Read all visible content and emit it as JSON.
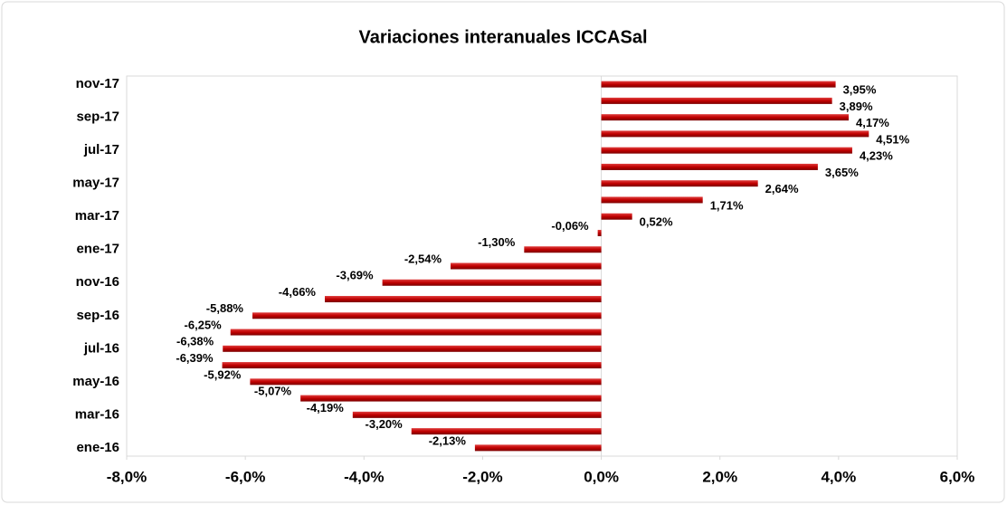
{
  "chart_data": {
    "type": "bar",
    "orientation": "horizontal",
    "title": "Variaciones interanuales ICCASal",
    "categories": [
      "ene-16",
      null,
      "mar-16",
      null,
      "may-16",
      null,
      "jul-16",
      null,
      "sep-16",
      null,
      "nov-16",
      null,
      "ene-17",
      null,
      "mar-17",
      null,
      "may-17",
      null,
      "jul-17",
      null,
      "sep-17",
      null,
      "nov-17"
    ],
    "values": [
      -2.13,
      -3.2,
      -4.19,
      -5.07,
      -5.92,
      -6.39,
      -6.38,
      -6.25,
      -5.88,
      -4.66,
      -3.69,
      -2.54,
      -1.3,
      -0.06,
      0.52,
      1.71,
      2.64,
      3.65,
      4.23,
      4.51,
      4.17,
      3.89,
      3.95
    ],
    "value_labels": [
      "-2,13%",
      "-3,20%",
      "-4,19%",
      "-5,07%",
      "-5,92%",
      "-6,39%",
      "-6,38%",
      "-6,25%",
      "-5,88%",
      "-4,66%",
      "-3,69%",
      "-2,54%",
      "-1,30%",
      "-0,06%",
      "0,52%",
      "1,71%",
      "2,64%",
      "3,65%",
      "4,23%",
      "4,51%",
      "4,17%",
      "3,89%",
      "3,95%"
    ],
    "color": "#c00000",
    "xlim": [
      -8,
      6
    ],
    "xticks": [
      {
        "value": -8,
        "label": "-8,0%"
      },
      {
        "value": -6,
        "label": "-6,0%"
      },
      {
        "value": -4,
        "label": "-4,0%"
      },
      {
        "value": -2,
        "label": "-2,0%"
      },
      {
        "value": 0,
        "label": "0,0%"
      },
      {
        "value": 2,
        "label": "2,0%"
      },
      {
        "value": 4,
        "label": "4,0%"
      },
      {
        "value": 6,
        "label": "6,0%"
      }
    ],
    "grid": false
  }
}
